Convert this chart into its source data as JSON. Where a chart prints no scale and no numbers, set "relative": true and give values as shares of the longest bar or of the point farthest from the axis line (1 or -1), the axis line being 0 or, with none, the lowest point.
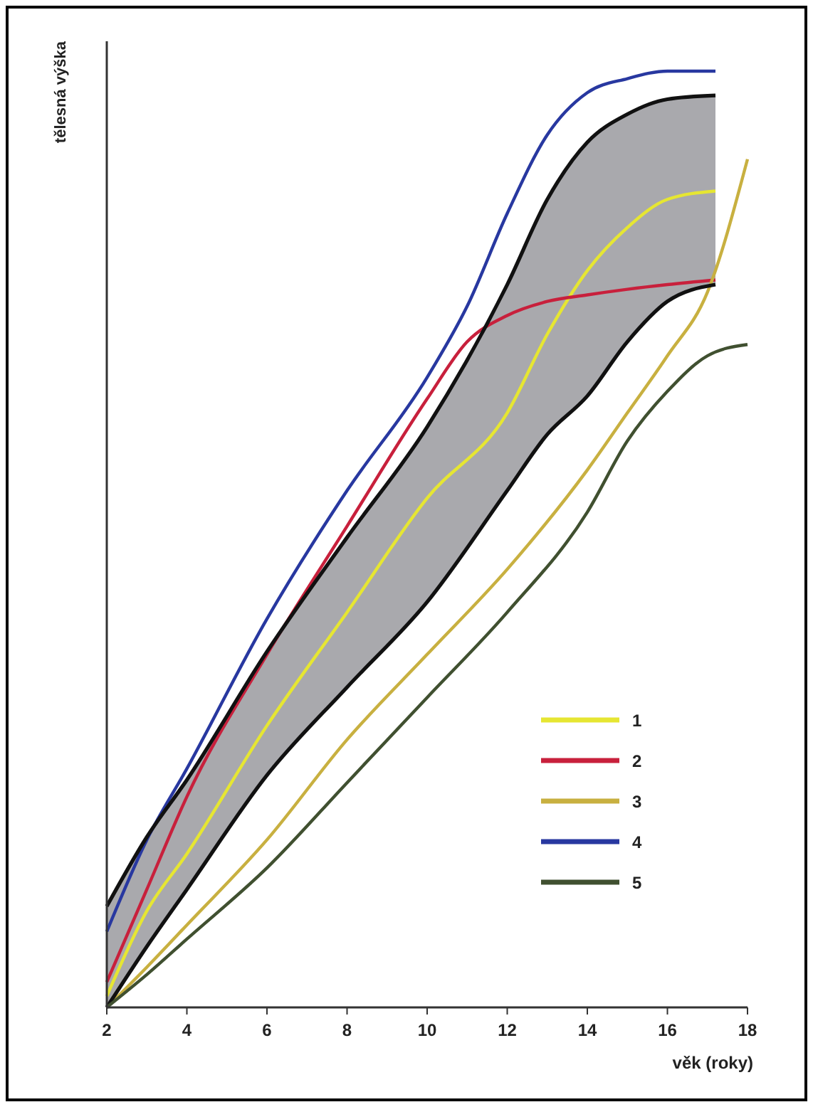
{
  "chart_data": {
    "type": "line",
    "ylabel": "tělesná výška",
    "xlabel": "věk (roky)",
    "relative": true,
    "xlim": [
      2,
      18
    ],
    "xticks": [
      2,
      4,
      6,
      8,
      10,
      12,
      14,
      16,
      18
    ],
    "legend": "bottom right",
    "marker": "none",
    "line_style": "solid",
    "grid": false,
    "series": [
      {
        "name": "1",
        "color": "#e6e632",
        "x": [
          2,
          3,
          4,
          6,
          8,
          10,
          12,
          13,
          14,
          15,
          16,
          17.2
        ],
        "values": [
          0.012,
          0.103,
          0.164,
          0.301,
          0.422,
          0.544,
          0.635,
          0.719,
          0.787,
          0.833,
          0.863,
          0.872
        ],
        "lower": [
          0,
          0.065,
          0.126,
          0.248,
          0.342,
          0.433,
          0.552,
          0.612,
          0.653,
          0.711,
          0.754,
          0.772
        ],
        "upper": [
          0.108,
          0.182,
          0.243,
          0.38,
          0.502,
          0.62,
          0.772,
          0.863,
          0.924,
          0.954,
          0.97,
          0.974
        ]
      },
      {
        "name": "2",
        "color": "#c8203c",
        "x": [
          2,
          3,
          4,
          6,
          8,
          10,
          11,
          12,
          13,
          14,
          15,
          16,
          17.2
        ],
        "values": [
          0.027,
          0.126,
          0.225,
          0.377,
          0.514,
          0.65,
          0.711,
          0.739,
          0.754,
          0.761,
          0.767,
          0.772,
          0.777
        ]
      },
      {
        "name": "3",
        "color": "#c8b040",
        "x": [
          2,
          3,
          4,
          6,
          8,
          10,
          12,
          14,
          15,
          16,
          17,
          18
        ],
        "values": [
          0,
          0.043,
          0.088,
          0.179,
          0.286,
          0.377,
          0.468,
          0.574,
          0.635,
          0.696,
          0.764,
          0.906
        ]
      },
      {
        "name": "4",
        "color": "#2838a0",
        "x": [
          2,
          3,
          4,
          6,
          8,
          10,
          11,
          12,
          13,
          14,
          15,
          16,
          17.2
        ],
        "values": [
          0.081,
          0.179,
          0.255,
          0.415,
          0.552,
          0.673,
          0.749,
          0.848,
          0.932,
          0.977,
          0.992,
          1,
          1
        ]
      },
      {
        "color": "#111111",
        "x": [
          2,
          3,
          4,
          6,
          8,
          10,
          12,
          13,
          14,
          15,
          16,
          17.2
        ],
        "values": [
          0,
          0.065,
          0.126,
          0.248,
          0.342,
          0.433,
          0.552,
          0.612,
          0.653,
          0.711,
          0.754,
          0.772
        ]
      },
      {
        "color": "#111111",
        "x": [
          2,
          3,
          4,
          6,
          8,
          10,
          12,
          13,
          14,
          15,
          16,
          17.2
        ],
        "values": [
          0.108,
          0.182,
          0.243,
          0.38,
          0.502,
          0.62,
          0.772,
          0.863,
          0.924,
          0.954,
          0.97,
          0.974
        ]
      },
      {
        "name": "5",
        "color": "#405030",
        "x": [
          2,
          3,
          4,
          6,
          8,
          10,
          12,
          14,
          15,
          16,
          17,
          18
        ],
        "values": [
          0,
          0.035,
          0.073,
          0.149,
          0.24,
          0.331,
          0.422,
          0.529,
          0.605,
          0.658,
          0.696,
          0.708
        ]
      }
    ]
  }
}
